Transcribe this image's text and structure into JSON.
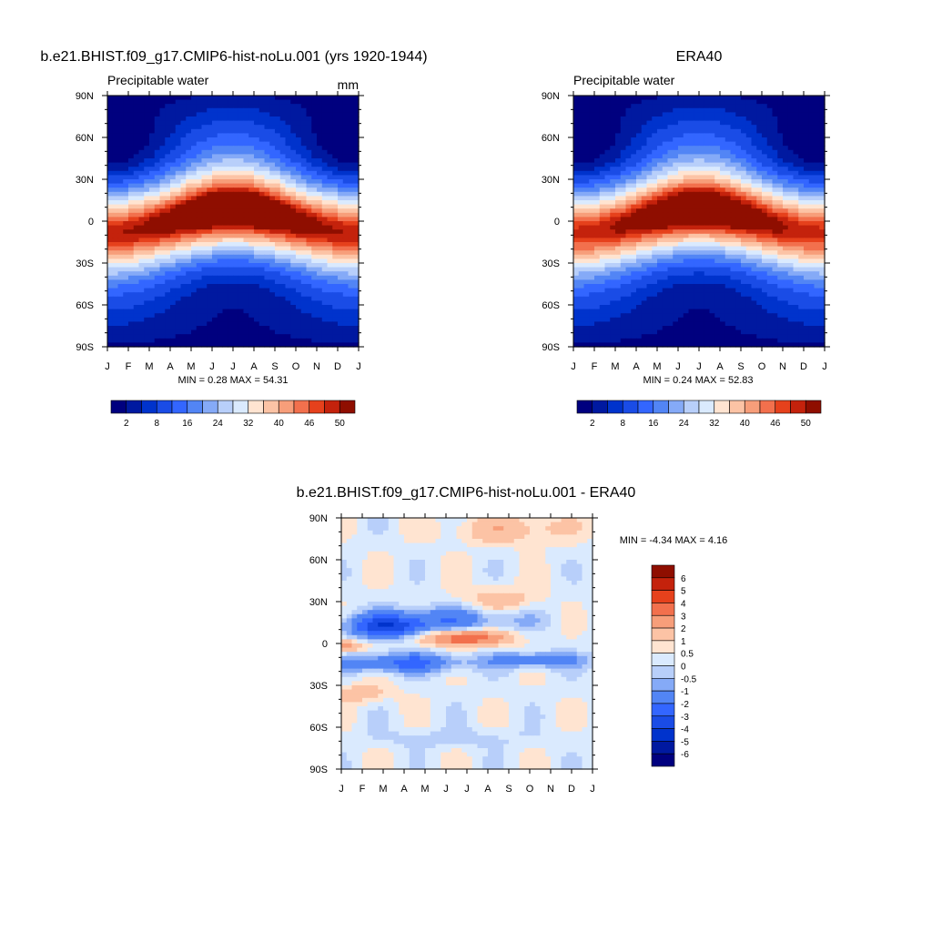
{
  "chart_data": [
    {
      "type": "heatmap",
      "title": "b.e21.BHIST.f09_g17.CMIP6-hist-noLu.001 (yrs 1920-1944)",
      "subtitle": "Precipitable water",
      "units": "mm",
      "x_ticks": [
        "J",
        "F",
        "M",
        "A",
        "M",
        "J",
        "J",
        "A",
        "S",
        "O",
        "N",
        "D",
        "J"
      ],
      "y_ticks": [
        "90N",
        "60N",
        "30N",
        "0",
        "30S",
        "60S",
        "90S"
      ],
      "y_values": [
        90,
        60,
        30,
        0,
        -30,
        -60,
        -90
      ],
      "stats": "MIN =   0.28 MAX =  54.31",
      "min": 0.28,
      "max": 54.31,
      "field": {
        "peak": 54,
        "itcz_lat_amplitude": 8,
        "north_boost": 7,
        "south_boost": 3
      },
      "colorbar": {
        "orientation": "horizontal",
        "levels": [
          2,
          5,
          8,
          12,
          16,
          20,
          24,
          28,
          32,
          36,
          40,
          43,
          46,
          48,
          50
        ],
        "labels": [
          "2",
          "8",
          "16",
          "24",
          "32",
          "40",
          "46",
          "50"
        ]
      }
    },
    {
      "type": "heatmap",
      "title": "ERA40",
      "subtitle": "Precipitable water",
      "units": "",
      "x_ticks": [
        "J",
        "F",
        "M",
        "A",
        "M",
        "J",
        "J",
        "A",
        "S",
        "O",
        "N",
        "D",
        "J"
      ],
      "y_ticks": [
        "90N",
        "60N",
        "30N",
        "0",
        "30S",
        "60S",
        "90S"
      ],
      "y_values": [
        90,
        60,
        30,
        0,
        -30,
        -60,
        -90
      ],
      "stats": "MIN =   0.24 MAX =  52.83",
      "min": 0.24,
      "max": 52.83,
      "field": {
        "peak": 53,
        "itcz_lat_amplitude": 8,
        "north_boost": 7,
        "south_boost": 3
      },
      "colorbar": {
        "orientation": "horizontal",
        "levels": [
          2,
          5,
          8,
          12,
          16,
          20,
          24,
          28,
          32,
          36,
          40,
          43,
          46,
          48,
          50
        ],
        "labels": [
          "2",
          "8",
          "16",
          "24",
          "32",
          "40",
          "46",
          "50"
        ]
      }
    },
    {
      "type": "heatmap",
      "title": "b.e21.BHIST.f09_g17.CMIP6-hist-noLu.001 - ERA40",
      "subtitle": "",
      "units": "",
      "x_ticks": [
        "J",
        "F",
        "M",
        "A",
        "M",
        "J",
        "J",
        "A",
        "S",
        "O",
        "N",
        "D",
        "J"
      ],
      "y_ticks": [
        "90N",
        "60N",
        "30N",
        "0",
        "30S",
        "60S",
        "90S"
      ],
      "y_values": [
        90,
        60,
        30,
        0,
        -30,
        -60,
        -90
      ],
      "stats": "MIN =  -4.34 MAX =   4.16",
      "min": -4.34,
      "max": 4.16,
      "colorbar": {
        "orientation": "vertical",
        "levels": [
          -6,
          -5,
          -4,
          -3,
          -2,
          -1,
          -0.5,
          0,
          0.5,
          1,
          2,
          3,
          4,
          5,
          6
        ],
        "labels": [
          "6",
          "5",
          "4",
          "3",
          "2",
          "1",
          "0.5",
          "0",
          "-0.5",
          "-1",
          "-2",
          "-3",
          "-4",
          "-5",
          "-6"
        ]
      }
    }
  ],
  "palette": {
    "blue_red_16": [
      "#00007f",
      "#0019a0",
      "#0033cc",
      "#1a4ce6",
      "#3366ff",
      "#5285f5",
      "#85aaf7",
      "#b8cffa",
      "#daeafe",
      "#ffe4d1",
      "#fcc3a5",
      "#f79e7a",
      "#f2704d",
      "#e6411c",
      "#c4220c",
      "#8f0e00"
    ]
  }
}
